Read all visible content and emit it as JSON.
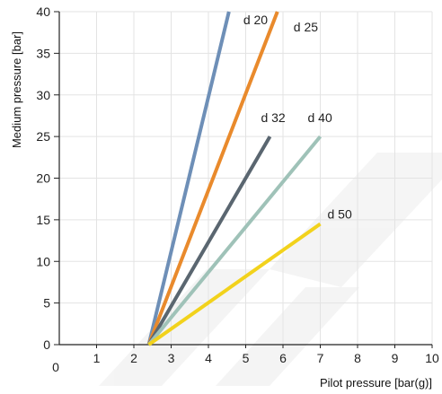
{
  "chart_data": {
    "type": "line",
    "xlabel": "Pilot pressure [bar(g)]",
    "ylabel": "Medium pressure [bar]",
    "xlim": [
      0,
      10
    ],
    "ylim": [
      0,
      40
    ],
    "x_ticks": [
      "0",
      "1",
      "2",
      "3",
      "4",
      "5",
      "6",
      "7",
      "8",
      "9",
      "10"
    ],
    "y_ticks": [
      "0",
      "5",
      "10",
      "15",
      "20",
      "25",
      "30",
      "35",
      "40"
    ],
    "grid": true,
    "series": [
      {
        "name": "d 20",
        "color": "#6e8fb7",
        "x": [
          2.4,
          4.55
        ],
        "y": [
          0,
          40
        ]
      },
      {
        "name": "d 25",
        "color": "#e98a2c",
        "x": [
          2.4,
          5.85
        ],
        "y": [
          0,
          40
        ]
      },
      {
        "name": "d 32",
        "color": "#5a6670",
        "x": [
          2.4,
          5.65
        ],
        "y": [
          0,
          25
        ]
      },
      {
        "name": "d 40",
        "color": "#9fc2b8",
        "x": [
          2.4,
          7.0
        ],
        "y": [
          0,
          25
        ]
      },
      {
        "name": "d 50",
        "color": "#f2d21c",
        "x": [
          2.4,
          7.0
        ],
        "y": [
          0,
          14.5
        ]
      }
    ]
  }
}
